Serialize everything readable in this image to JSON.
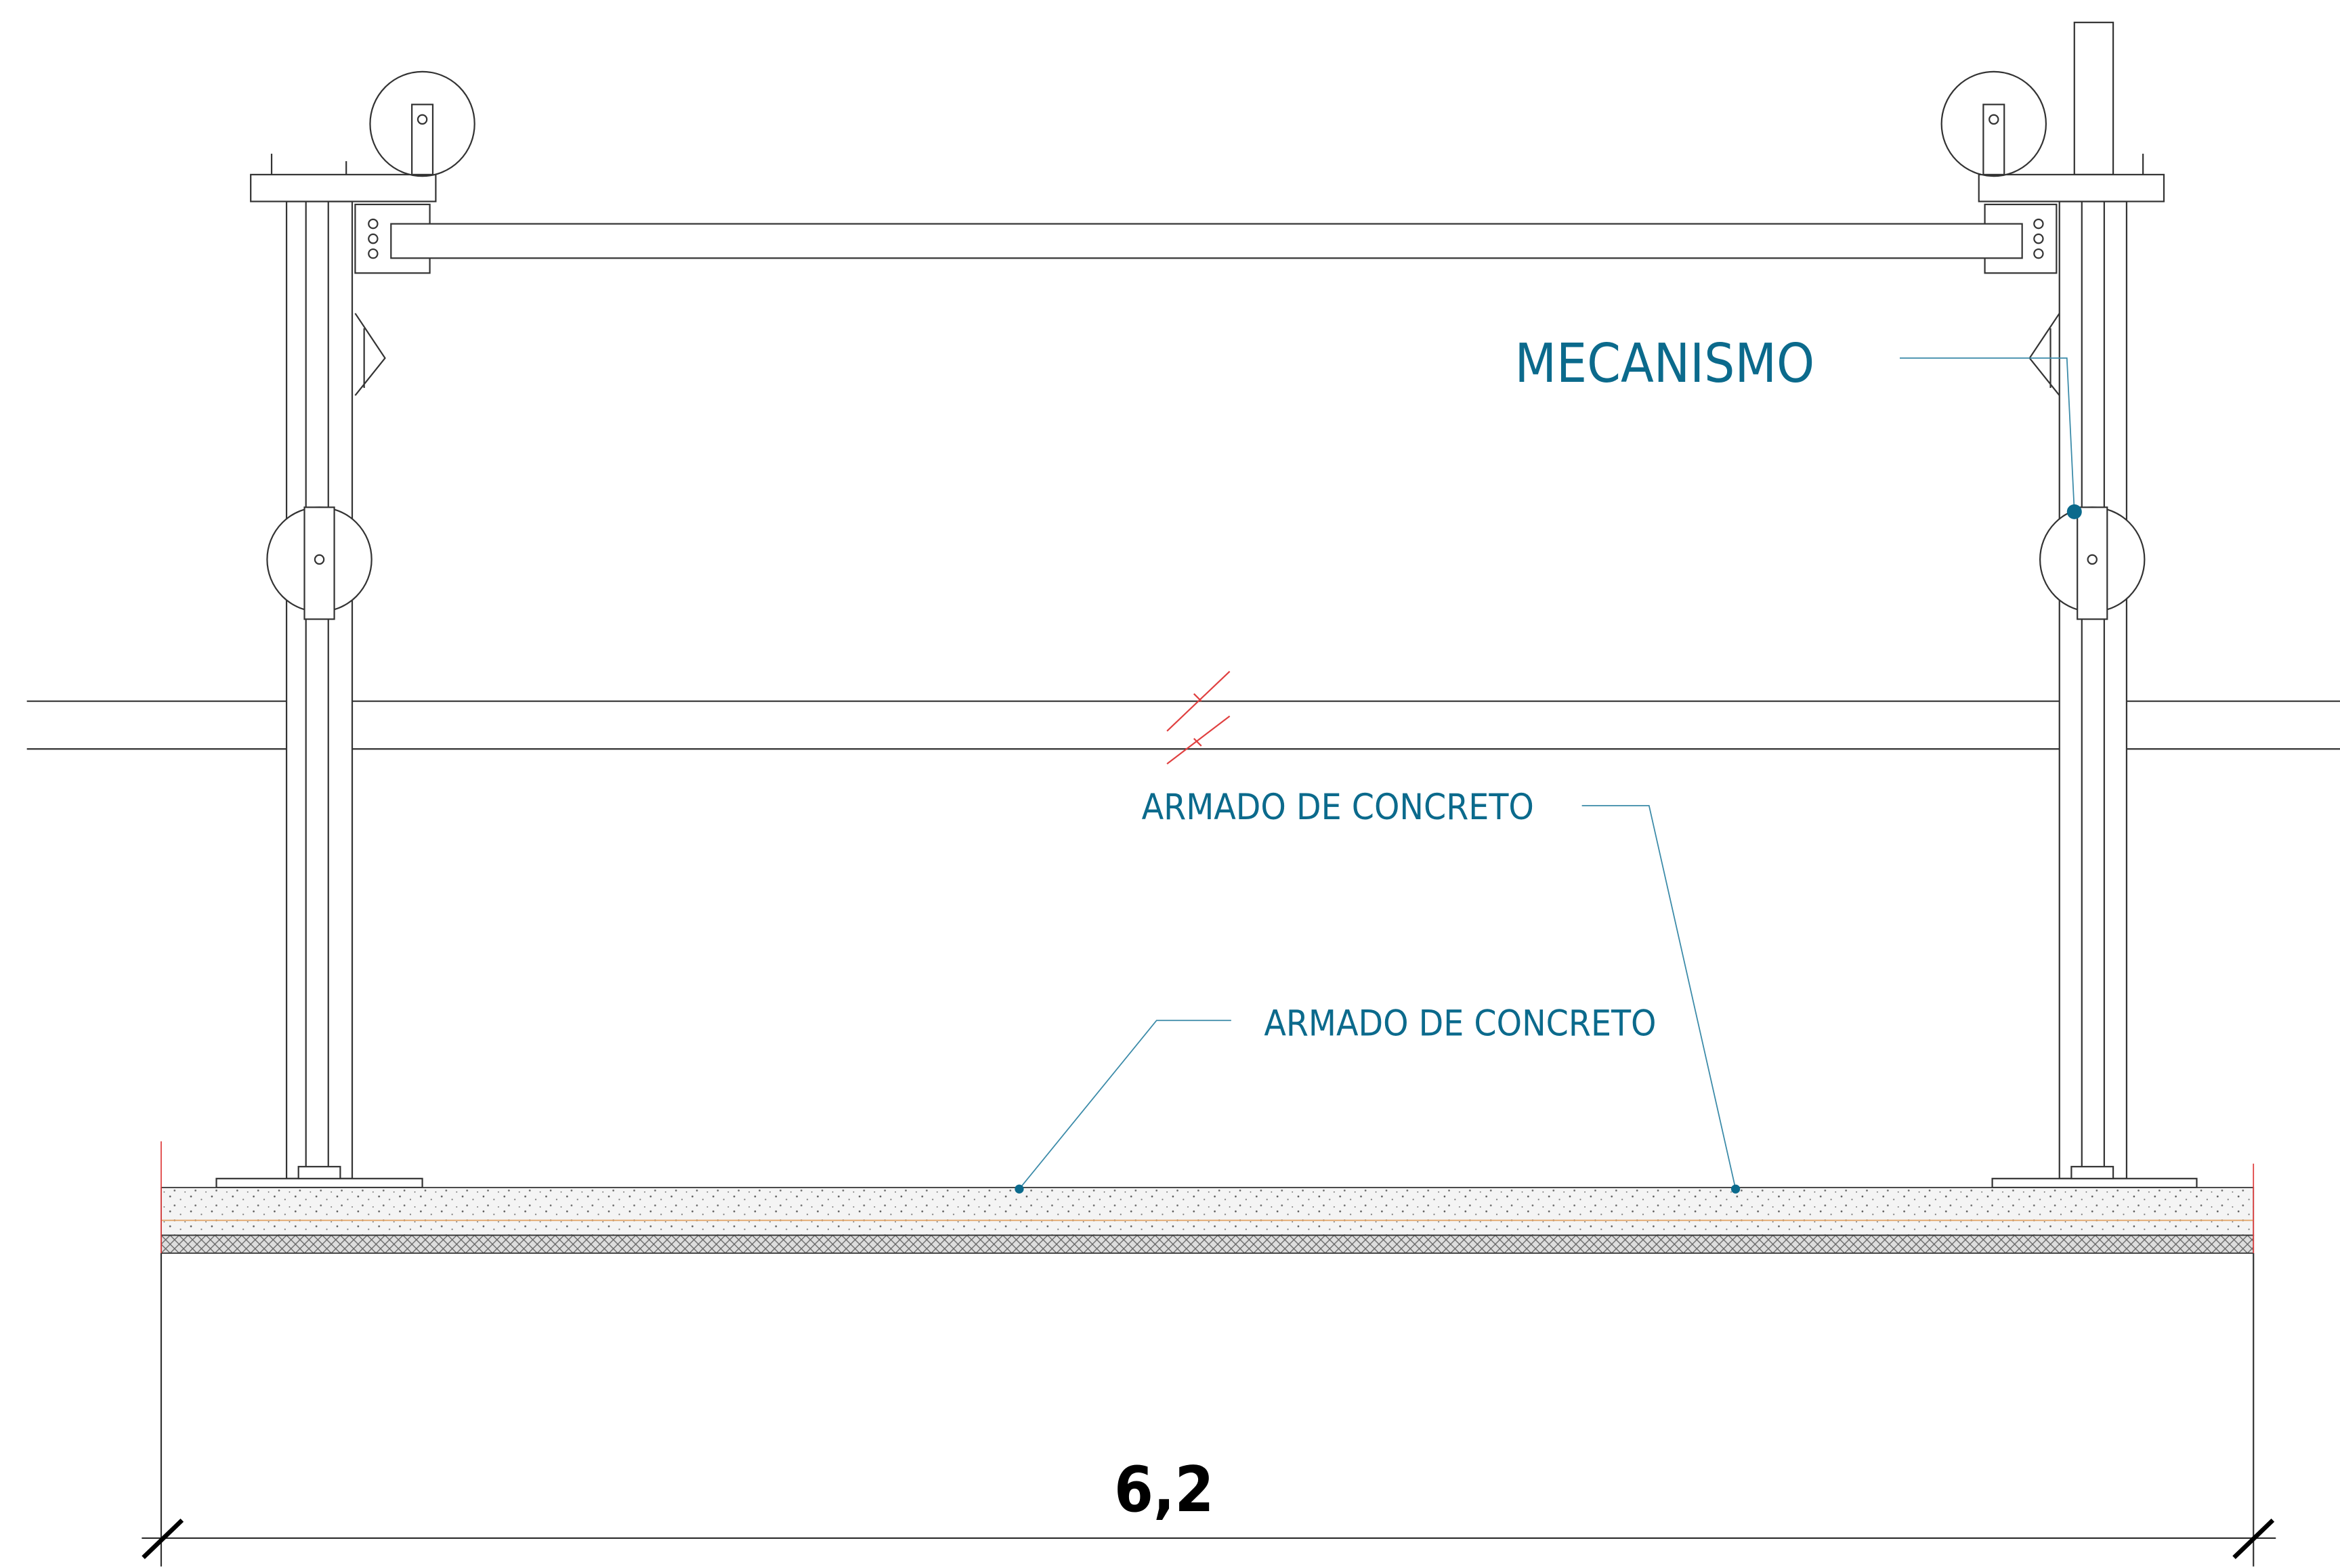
{
  "labels": {
    "mechanism": "MECANISMO",
    "concrete_upper": "ARMADO DE CONCRETO",
    "concrete_lower": "ARMADO DE CONCRETO"
  },
  "dimension": {
    "width": "6,2"
  }
}
